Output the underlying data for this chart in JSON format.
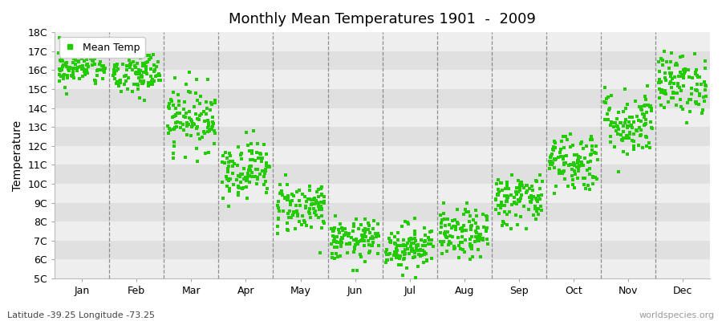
{
  "title": "Monthly Mean Temperatures 1901  -  2009",
  "ylabel": "Temperature",
  "subtitle": "Latitude -39.25 Longitude -73.25",
  "watermark": "worldspecies.org",
  "legend_label": "Mean Temp",
  "dot_color": "#22CC00",
  "bg_color": "#ffffff",
  "plot_bg_light": "#eeeeee",
  "plot_bg_dark": "#e0e0e0",
  "months": [
    "Jan",
    "Feb",
    "Mar",
    "Apr",
    "May",
    "Jun",
    "Jul",
    "Aug",
    "Sep",
    "Oct",
    "Nov",
    "Dec"
  ],
  "month_means": [
    16.2,
    15.8,
    13.5,
    10.8,
    8.8,
    7.0,
    6.7,
    7.3,
    9.2,
    11.2,
    13.2,
    15.3
  ],
  "month_stds": [
    0.55,
    0.65,
    0.85,
    0.75,
    0.7,
    0.55,
    0.6,
    0.65,
    0.7,
    0.8,
    0.9,
    0.8
  ],
  "n_years": 109,
  "ylim_min": 5,
  "ylim_max": 18,
  "yticks": [
    5,
    6,
    7,
    8,
    9,
    10,
    11,
    12,
    13,
    14,
    15,
    16,
    17,
    18
  ],
  "ytick_labels": [
    "5C",
    "6C",
    "7C",
    "8C",
    "9C",
    "10C",
    "11C",
    "12C",
    "13C",
    "14C",
    "15C",
    "16C",
    "17C",
    "18C"
  ]
}
